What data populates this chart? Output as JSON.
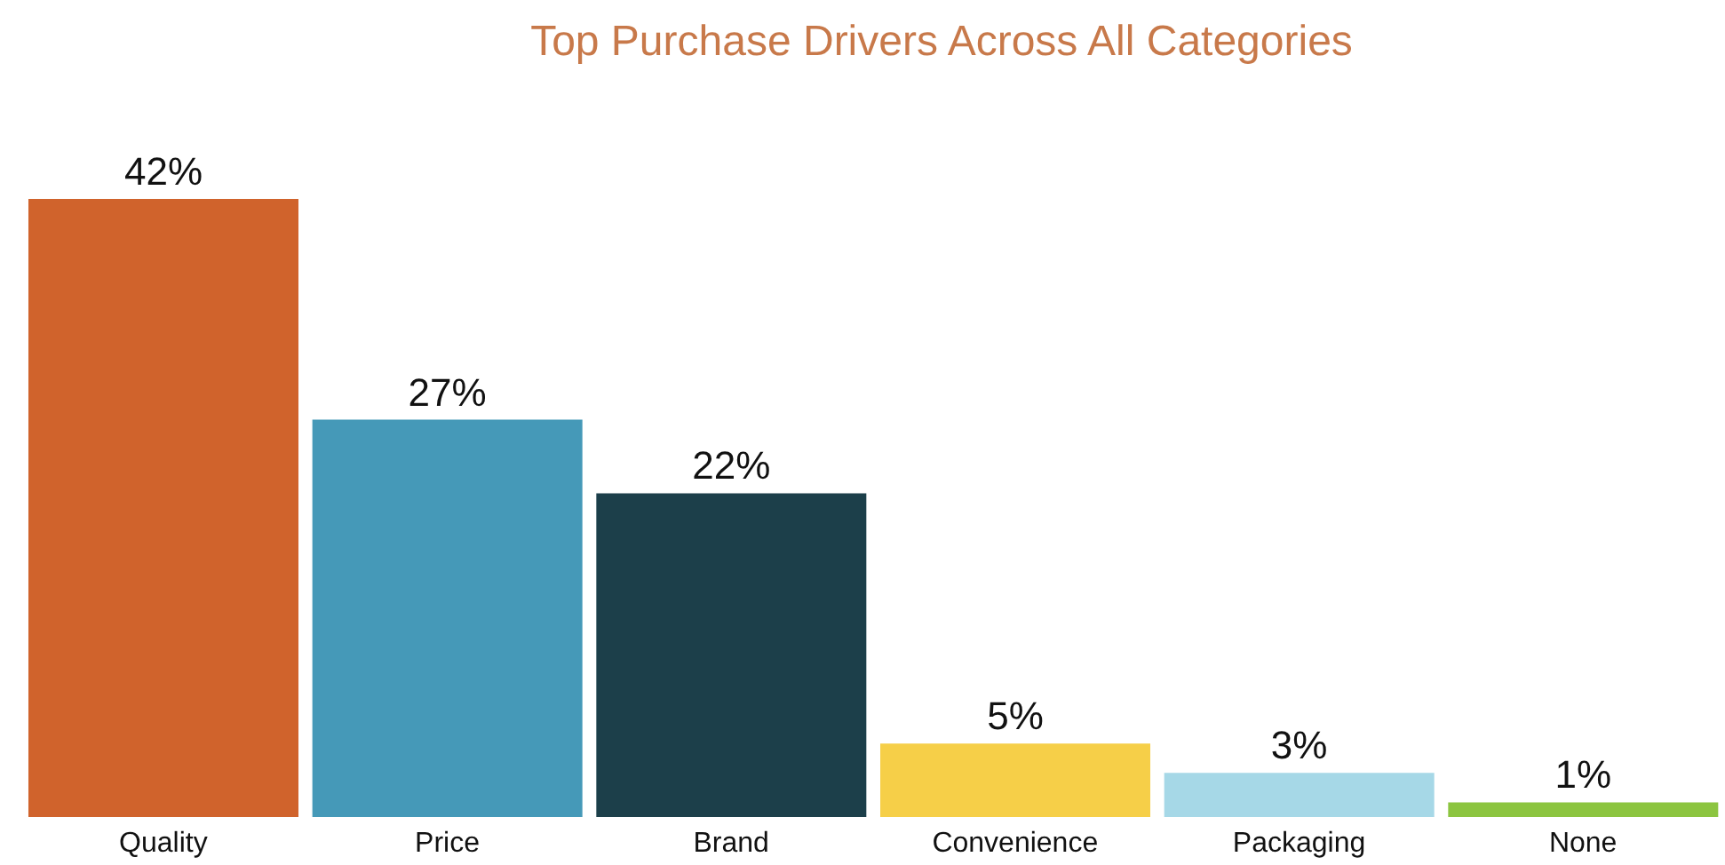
{
  "chart_data": {
    "type": "bar",
    "title": "Top Purchase Drivers Across All Categories",
    "categories": [
      "Quality",
      "Price",
      "Brand",
      "Convenience",
      "Packaging",
      "None"
    ],
    "values": [
      42,
      27,
      22,
      5,
      3,
      1
    ],
    "colors": [
      "#d0632c",
      "#4599b8",
      "#1c3f4a",
      "#f6cf48",
      "#a6d8e7",
      "#8cc540"
    ],
    "value_labels": [
      "42%",
      "27%",
      "22%",
      "5%",
      "3%",
      "1%"
    ],
    "tick_labels": "x"
  }
}
